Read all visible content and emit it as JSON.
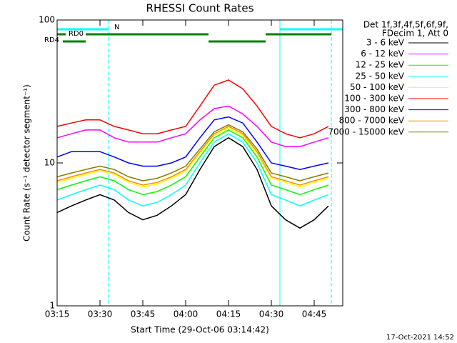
{
  "chart_data": {
    "type": "line",
    "title": "RHESSI Count Rates",
    "xlabel": "Start Time (29-Oct-06 03:14:42)",
    "ylabel": "Count Rate (s⁻¹ detector segment⁻¹)",
    "legend_title": [
      "Det 1f,3f,4f,5f,6f,9f,",
      "FDecim 1, Att 0"
    ],
    "footer": "17-Oct-2021 14:52",
    "log_y": true,
    "xlim": [
      "03:15",
      "04:55"
    ],
    "xticks": [
      "03:15",
      "03:30",
      "03:45",
      "04:00",
      "04:15",
      "04:30",
      "04:45"
    ],
    "ylim": [
      1,
      100
    ],
    "yticks": [
      1,
      10,
      100
    ],
    "x": [
      "03:15",
      "03:20",
      "03:25",
      "03:30",
      "03:35",
      "03:40",
      "03:45",
      "03:50",
      "03:55",
      "04:00",
      "04:05",
      "04:10",
      "04:15",
      "04:20",
      "04:25",
      "04:30",
      "04:35",
      "04:40",
      "04:45",
      "04:50"
    ],
    "series": [
      {
        "name": "3 - 6 keV",
        "color": "#000000",
        "values": [
          4.5,
          5,
          5.5,
          6,
          5.5,
          4.5,
          4,
          4.3,
          5,
          6,
          9,
          13,
          15,
          13,
          9,
          5,
          4,
          3.5,
          4,
          5
        ]
      },
      {
        "name": "6 - 12 keV",
        "color": "#ff00ff",
        "values": [
          15,
          16,
          17,
          17,
          15,
          14,
          14,
          14,
          15,
          16,
          20,
          24,
          25,
          22,
          18,
          14,
          13,
          13,
          14,
          15
        ]
      },
      {
        "name": "12 - 25 keV",
        "color": "#00ff00",
        "values": [
          6.5,
          7,
          7.5,
          8,
          7.5,
          6.5,
          6,
          6.3,
          7,
          8,
          11,
          15,
          17,
          15,
          11,
          7,
          6.5,
          6,
          6.5,
          7
        ]
      },
      {
        "name": "25 - 50 keV",
        "color": "#00ffff",
        "values": [
          5.5,
          6,
          6.5,
          7,
          6.5,
          5.5,
          5,
          5.3,
          6,
          7,
          10,
          14,
          16,
          14,
          10,
          6,
          5.5,
          5,
          5.5,
          6
        ]
      },
      {
        "name": "50 - 100 keV",
        "color": "#ffff00",
        "values": [
          7.3,
          7.8,
          8.3,
          8.8,
          8.3,
          7.3,
          6.8,
          7.1,
          7.8,
          8.8,
          11.7,
          15.6,
          17.5,
          15.6,
          11.7,
          7.8,
          7.3,
          6.8,
          7.3,
          7.8
        ]
      },
      {
        "name": "100 - 300 keV",
        "color": "#ff0000",
        "values": [
          18,
          19,
          20,
          20,
          18,
          17,
          16,
          16,
          17,
          18,
          25,
          35,
          38,
          33,
          25,
          18,
          16,
          15,
          16,
          18
        ]
      },
      {
        "name": "300 - 800 keV",
        "color": "#0000ff",
        "values": [
          11,
          12,
          12,
          12,
          11,
          10,
          9.5,
          9.5,
          10,
          11,
          15,
          20,
          21,
          19,
          14,
          10,
          9.5,
          9,
          9.5,
          10
        ]
      },
      {
        "name": "800 - 7000 keV",
        "color": "#ff8c00",
        "values": [
          7.5,
          8,
          8.5,
          9,
          8.5,
          7.5,
          7,
          7.3,
          8,
          9,
          12,
          16,
          18,
          16,
          12,
          8,
          7.5,
          7,
          7.5,
          8
        ]
      },
      {
        "name": "7000 - 15000 keV",
        "color": "#808000",
        "values": [
          8,
          8.5,
          9,
          9.5,
          9,
          8,
          7.5,
          7.8,
          8.5,
          9.5,
          12.5,
          16.5,
          18.5,
          16.5,
          12.5,
          8.5,
          8,
          7.5,
          8,
          8.5
        ]
      }
    ],
    "vlines": [
      {
        "x": "03:15",
        "color": "#00ffff",
        "dashed": false
      },
      {
        "x": "03:33",
        "color": "#00ffff",
        "dashed": true
      },
      {
        "x": "04:33",
        "color": "#00ffff",
        "dashed": false
      },
      {
        "x": "04:51",
        "color": "#00ffff",
        "dashed": true
      }
    ],
    "flags": [
      {
        "label": "N",
        "color": "#00ffff",
        "spans": [
          [
            "03:15",
            "03:33"
          ],
          [
            "04:33",
            "04:55"
          ]
        ]
      },
      {
        "label": "RD0",
        "color": "#008000",
        "spans": [
          [
            "03:15",
            "03:18"
          ],
          [
            "03:25",
            "04:08"
          ],
          [
            "04:28",
            "04:51"
          ]
        ]
      },
      {
        "label": "RD4",
        "color": "#008000",
        "spans": [
          [
            "03:17",
            "03:25"
          ],
          [
            "04:08",
            "04:28"
          ]
        ]
      }
    ]
  }
}
